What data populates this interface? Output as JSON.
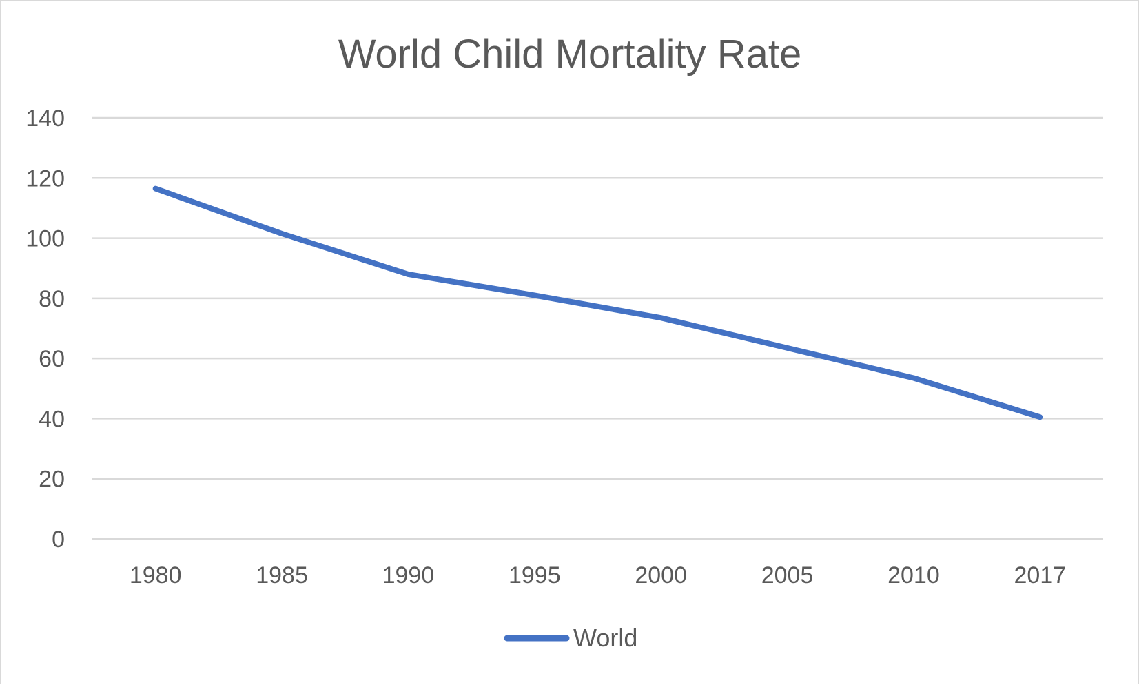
{
  "chart_data": {
    "type": "line",
    "title": "World Child Mortality Rate",
    "xlabel": "",
    "ylabel": "",
    "categories": [
      "1980",
      "1985",
      "1990",
      "1995",
      "2000",
      "2005",
      "2010",
      "2017"
    ],
    "series": [
      {
        "name": "World",
        "color": "#4472c4",
        "values": [
          116.5,
          101.5,
          88,
          81,
          73.5,
          63.5,
          53.5,
          40.5
        ]
      }
    ],
    "ylim": [
      0,
      140
    ],
    "yticks": [
      0,
      20,
      40,
      60,
      80,
      100,
      120,
      140
    ],
    "grid": "horizontal",
    "legend_position": "bottom"
  }
}
